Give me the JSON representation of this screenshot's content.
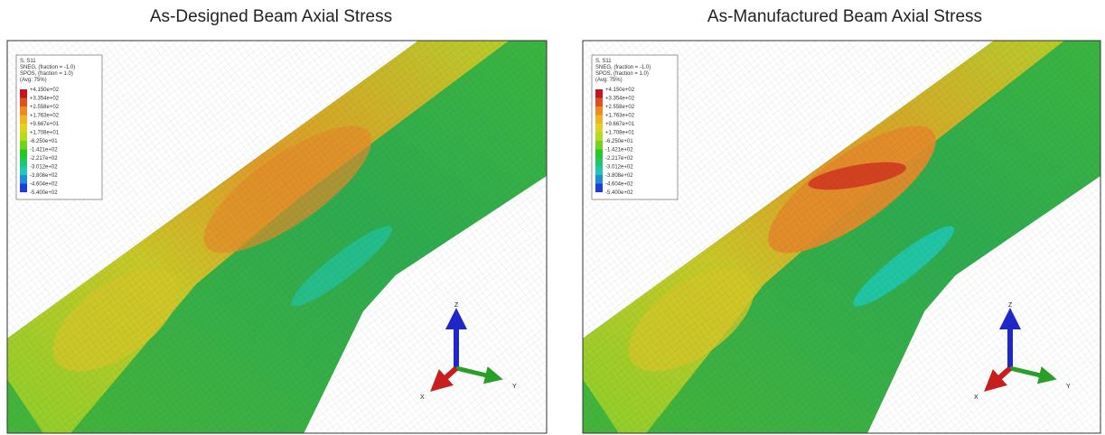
{
  "panels": [
    {
      "title": "As-Designed Beam Axial Stress",
      "legend": {
        "header": [
          "S, S11",
          "SNEG, (fraction = -1.0)",
          "SPOS, (fraction = 1.0)",
          "(Avg: 75%)"
        ],
        "levels": [
          "+4.150e+02",
          "+3.354e+02",
          "+2.558e+02",
          "+1.763e+02",
          "+9.667e+01",
          "+1.708e+01",
          "-6.250e+01",
          "-1.421e+02",
          "-2.217e+02",
          "-3.012e+02",
          "-3.808e+02",
          "-4.604e+02",
          "-5.400e+02"
        ]
      },
      "triad": {
        "z": "Z",
        "y": "Y",
        "x": "X"
      }
    },
    {
      "title": "As-Manufactured Beam Axial Stress",
      "legend": {
        "header": [
          "S, S11",
          "SNEG, (fraction = -1.0)",
          "SPOS, (fraction = 1.0)",
          "(Avg: 75%)"
        ],
        "levels": [
          "+4.150e+02",
          "+3.354e+02",
          "+2.558e+02",
          "+1.763e+02",
          "+9.667e+01",
          "+1.708e+01",
          "-6.250e+01",
          "-1.421e+02",
          "-2.217e+02",
          "-3.012e+02",
          "-3.808e+02",
          "-4.604e+02",
          "-5.400e+02"
        ]
      },
      "triad": {
        "z": "Z",
        "y": "Y",
        "x": "X"
      }
    }
  ]
}
